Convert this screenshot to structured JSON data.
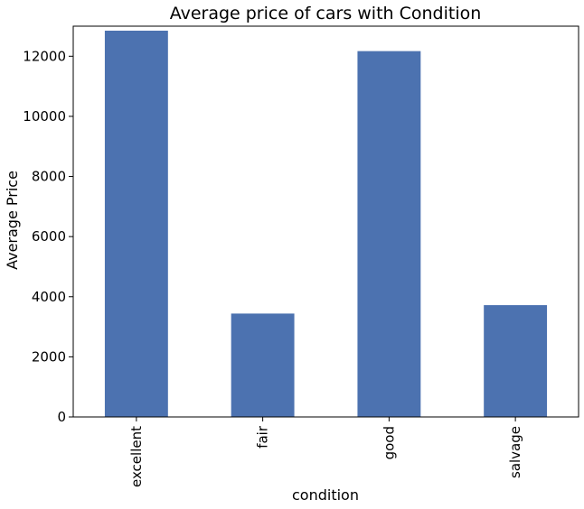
{
  "chart_data": {
    "type": "bar",
    "title": "Average price of cars with Condition",
    "xlabel": "condition",
    "ylabel": "Average Price",
    "categories": [
      "excellent",
      "fair",
      "good",
      "salvage"
    ],
    "values": [
      12850,
      3440,
      12170,
      3720
    ],
    "ylim": [
      0,
      13000
    ],
    "yticks": [
      0,
      2000,
      4000,
      6000,
      8000,
      10000,
      12000
    ],
    "grid": false,
    "bar_color": "#4c72b0"
  }
}
